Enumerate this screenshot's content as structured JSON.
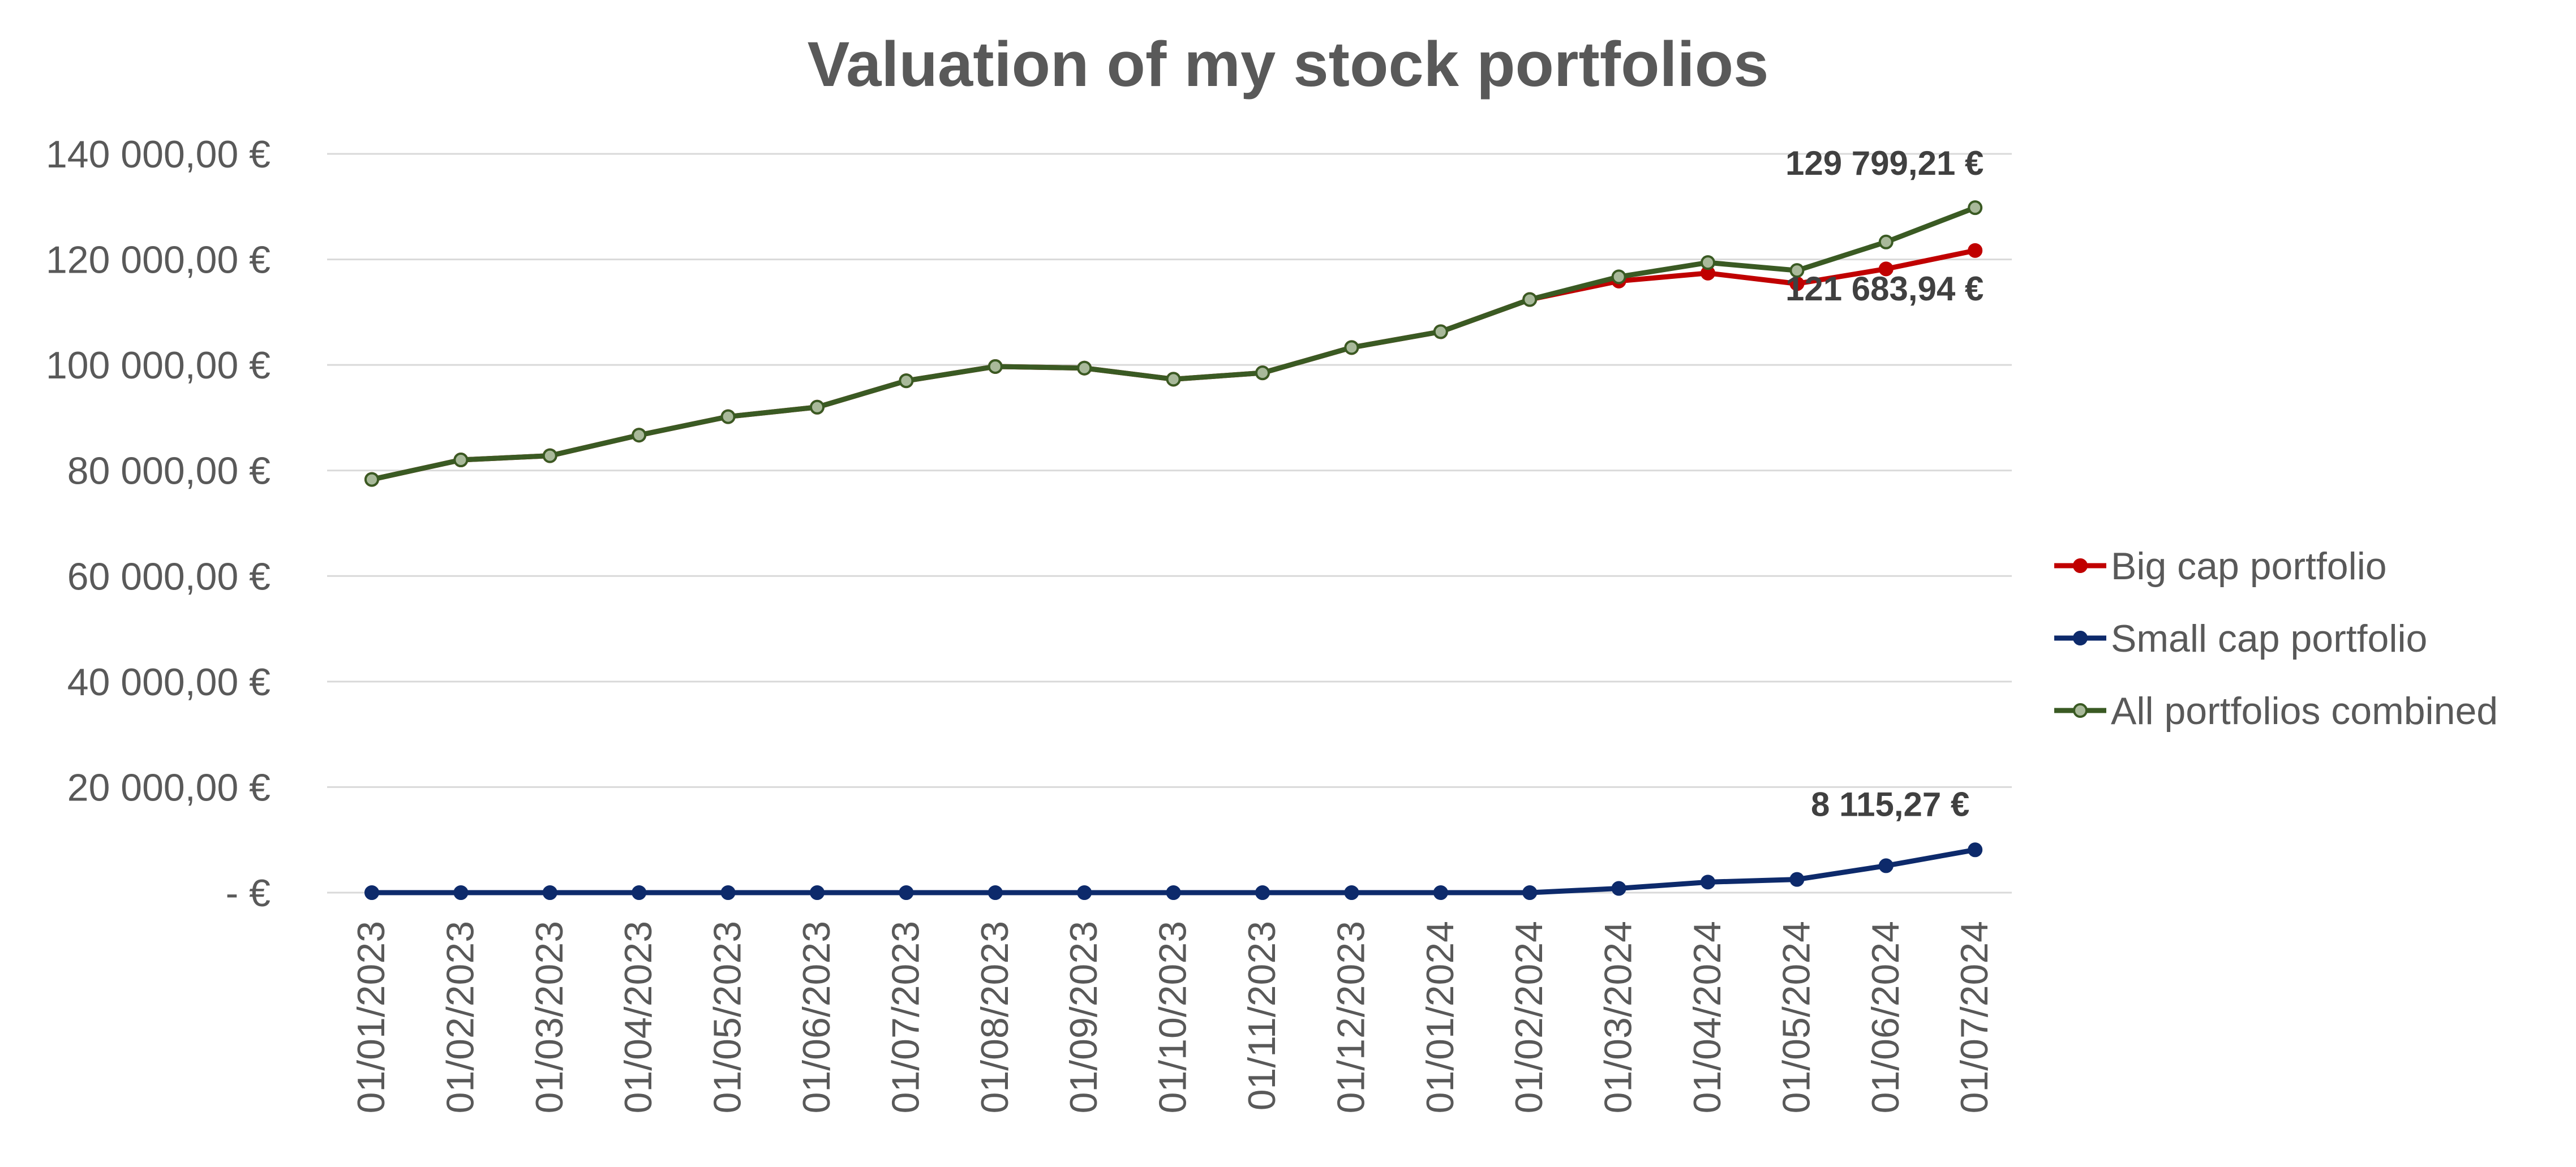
{
  "chart_data": {
    "type": "line",
    "title": "Valuation of my stock portfolios",
    "xlabel": "",
    "ylabel": "",
    "x": [
      "01/01/2023",
      "01/02/2023",
      "01/03/2023",
      "01/04/2023",
      "01/05/2023",
      "01/06/2023",
      "01/07/2023",
      "01/08/2023",
      "01/09/2023",
      "01/10/2023",
      "01/11/2023",
      "01/12/2023",
      "01/01/2024",
      "01/02/2024",
      "01/03/2024",
      "01/04/2024",
      "01/05/2024",
      "01/06/2024",
      "01/07/2024"
    ],
    "ylim": [
      0,
      140000
    ],
    "y_ticks": [
      {
        "value": 0,
        "label": "-   €"
      },
      {
        "value": 20000,
        "label": "20 000,00 €"
      },
      {
        "value": 40000,
        "label": "40 000,00 €"
      },
      {
        "value": 60000,
        "label": "60 000,00 €"
      },
      {
        "value": 80000,
        "label": "80 000,00 €"
      },
      {
        "value": 100000,
        "label": "100 000,00 €"
      },
      {
        "value": 120000,
        "label": "120 000,00 €"
      },
      {
        "value": 140000,
        "label": "140 000,00 €"
      }
    ],
    "grid": true,
    "legend_position": "right",
    "series": [
      {
        "name": "Big cap portfolio",
        "color": "#c00000",
        "marker_fill": "#c00000",
        "values": [
          78300,
          82000,
          82800,
          86700,
          90200,
          92000,
          97000,
          99700,
          99400,
          97300,
          98500,
          103300,
          106300,
          112400,
          115900,
          117400,
          115400,
          118200,
          121683.94
        ],
        "end_label": "121 683,94 €"
      },
      {
        "name": "Small cap portfolio",
        "color": "#0d2a6b",
        "marker_fill": "#0d2a6b",
        "values": [
          0,
          0,
          0,
          0,
          0,
          0,
          0,
          0,
          0,
          0,
          0,
          0,
          0,
          0,
          800,
          2000,
          2500,
          5100,
          8115.27
        ],
        "end_label": "8 115,27 €"
      },
      {
        "name": "All portfolios combined",
        "color": "#3a5a23",
        "marker_fill": "#a9b99a",
        "values": [
          78300,
          82000,
          82800,
          86700,
          90200,
          92000,
          97000,
          99700,
          99400,
          97300,
          98500,
          103300,
          106300,
          112400,
          116700,
          119400,
          117900,
          123300,
          129799.21
        ],
        "end_label": "129 799,21 €"
      }
    ]
  }
}
